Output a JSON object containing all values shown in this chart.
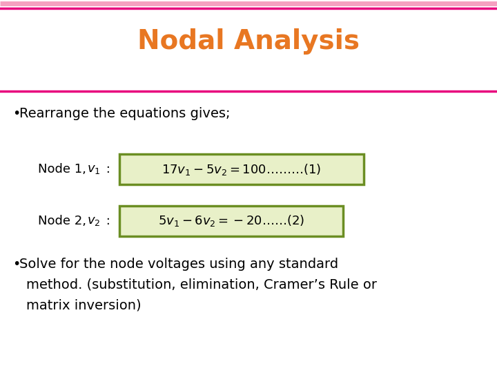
{
  "title": "Nodal Analysis",
  "title_color": "#E87722",
  "title_fontsize": 28,
  "bg_color": "#FFFFFF",
  "line_color": "#E8007D",
  "box_edge_color": "#6B8E23",
  "box_fill_color": "#E8F0C8",
  "text_color": "#000000",
  "bullet1": "Rearrange the equations gives;",
  "node1_label_regular": "Node 1, ",
  "node1_label_italic": "v",
  "node1_label_sub": "1",
  "node1_label_end": " :",
  "node2_label_regular": "Node 2, ",
  "node2_label_italic": "v",
  "node2_label_sub": "2",
  "node2_label_end": " :",
  "bullet2_line1": "Solve for the node voltages using any standard",
  "bullet2_line2": "method. (substitution, elimination, Cramer’s Rule or",
  "bullet2_line3": "matrix inversion)",
  "body_fontsize": 14,
  "label_fontsize": 13,
  "eq_fontsize": 13
}
